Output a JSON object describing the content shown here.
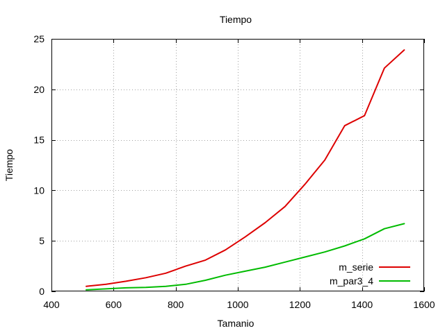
{
  "chart_data": {
    "type": "line",
    "title": "Tiempo",
    "xlabel": "Tamanio",
    "ylabel": "Tiempo",
    "xlim": [
      400,
      1600
    ],
    "ylim": [
      0,
      25
    ],
    "xticks": [
      400,
      600,
      800,
      1000,
      1200,
      1400,
      1600
    ],
    "yticks": [
      0,
      5,
      10,
      15,
      20,
      25
    ],
    "grid": true,
    "legend_position": "bottom-right",
    "series": [
      {
        "name": "m_serie",
        "color": "#dd0000",
        "x": [
          512,
          576,
          640,
          704,
          768,
          832,
          896,
          960,
          1024,
          1088,
          1152,
          1216,
          1280,
          1344,
          1408,
          1472,
          1536
        ],
        "y": [
          0.5,
          0.7,
          1.0,
          1.35,
          1.8,
          2.5,
          3.1,
          4.1,
          5.4,
          6.8,
          8.4,
          10.6,
          13.0,
          16.4,
          17.4,
          22.1,
          23.9
        ]
      },
      {
        "name": "m_par3_4",
        "color": "#00bb00",
        "x": [
          512,
          576,
          640,
          704,
          768,
          832,
          896,
          960,
          1024,
          1088,
          1152,
          1216,
          1280,
          1344,
          1408,
          1472,
          1536
        ],
        "y": [
          0.15,
          0.25,
          0.35,
          0.4,
          0.5,
          0.7,
          1.1,
          1.6,
          2.0,
          2.4,
          2.9,
          3.4,
          3.9,
          4.5,
          5.2,
          6.2,
          6.7
        ]
      }
    ]
  }
}
